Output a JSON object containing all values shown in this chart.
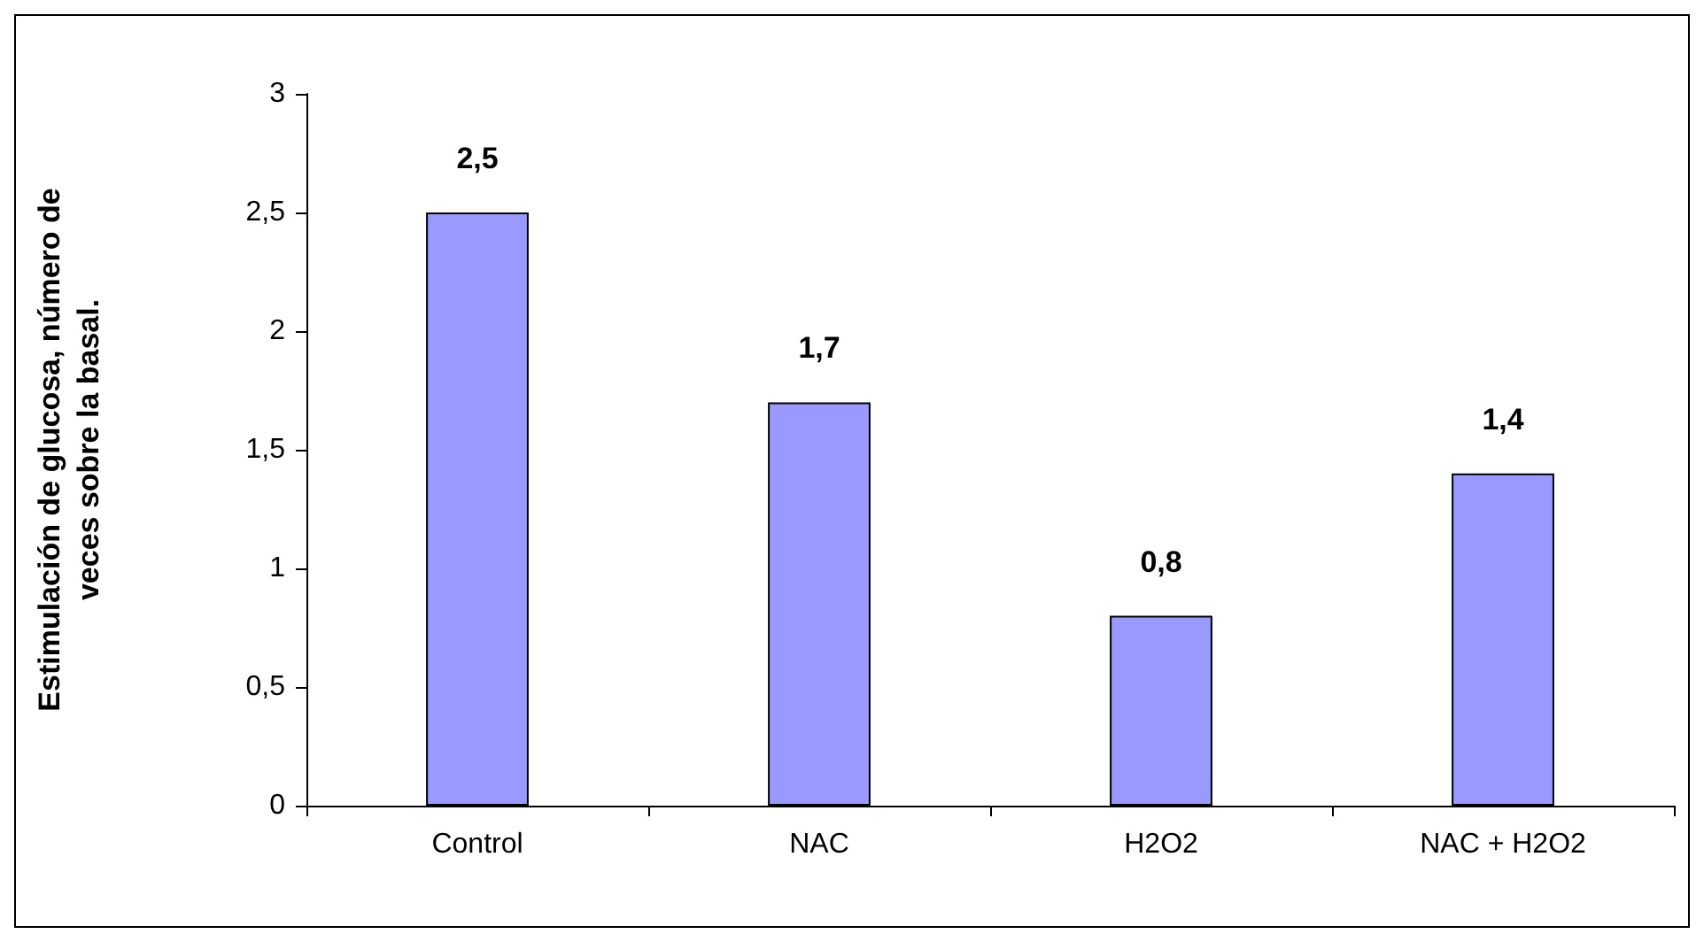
{
  "chart_data": {
    "type": "bar",
    "ylabel": "Estimulación de glucosa, número de veces sobre la basal.",
    "categories": [
      "Control",
      "NAC",
      "H2O2",
      "NAC + H2O2"
    ],
    "values": [
      2.5,
      1.7,
      0.8,
      1.4
    ],
    "color": "#9999ff",
    "value_labels": [
      "2,5",
      "1,7",
      "0,8",
      "1,4"
    ],
    "ylim": [
      0,
      3
    ],
    "yticks": [
      0,
      {
        "value": 0.5,
        "label": "0,5"
      },
      1,
      {
        "value": 1.5,
        "label": "1,5"
      },
      2,
      {
        "value": 2.5,
        "label": "2,5"
      },
      3
    ],
    "grid": false
  }
}
